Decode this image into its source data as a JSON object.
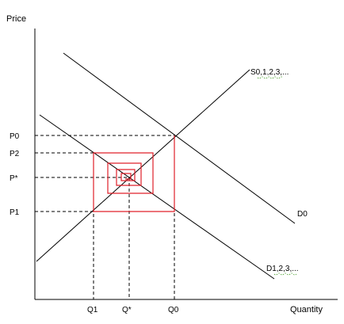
{
  "axes": {
    "y_label": "Price",
    "x_label": "Quantity"
  },
  "price_ticks": {
    "p0": "P0",
    "p2": "P2",
    "pstar": "P*",
    "p1": "P1"
  },
  "quantity_ticks": {
    "q1": "Q1",
    "qstar": "Q*",
    "q0": "Q0"
  },
  "curves": {
    "supply": "S0,1,2,3,...",
    "demand_0": "D0",
    "demand_n": "D1,2,3,..."
  },
  "colors": {
    "axis": "#000000",
    "cobweb": "#e0202a"
  }
}
